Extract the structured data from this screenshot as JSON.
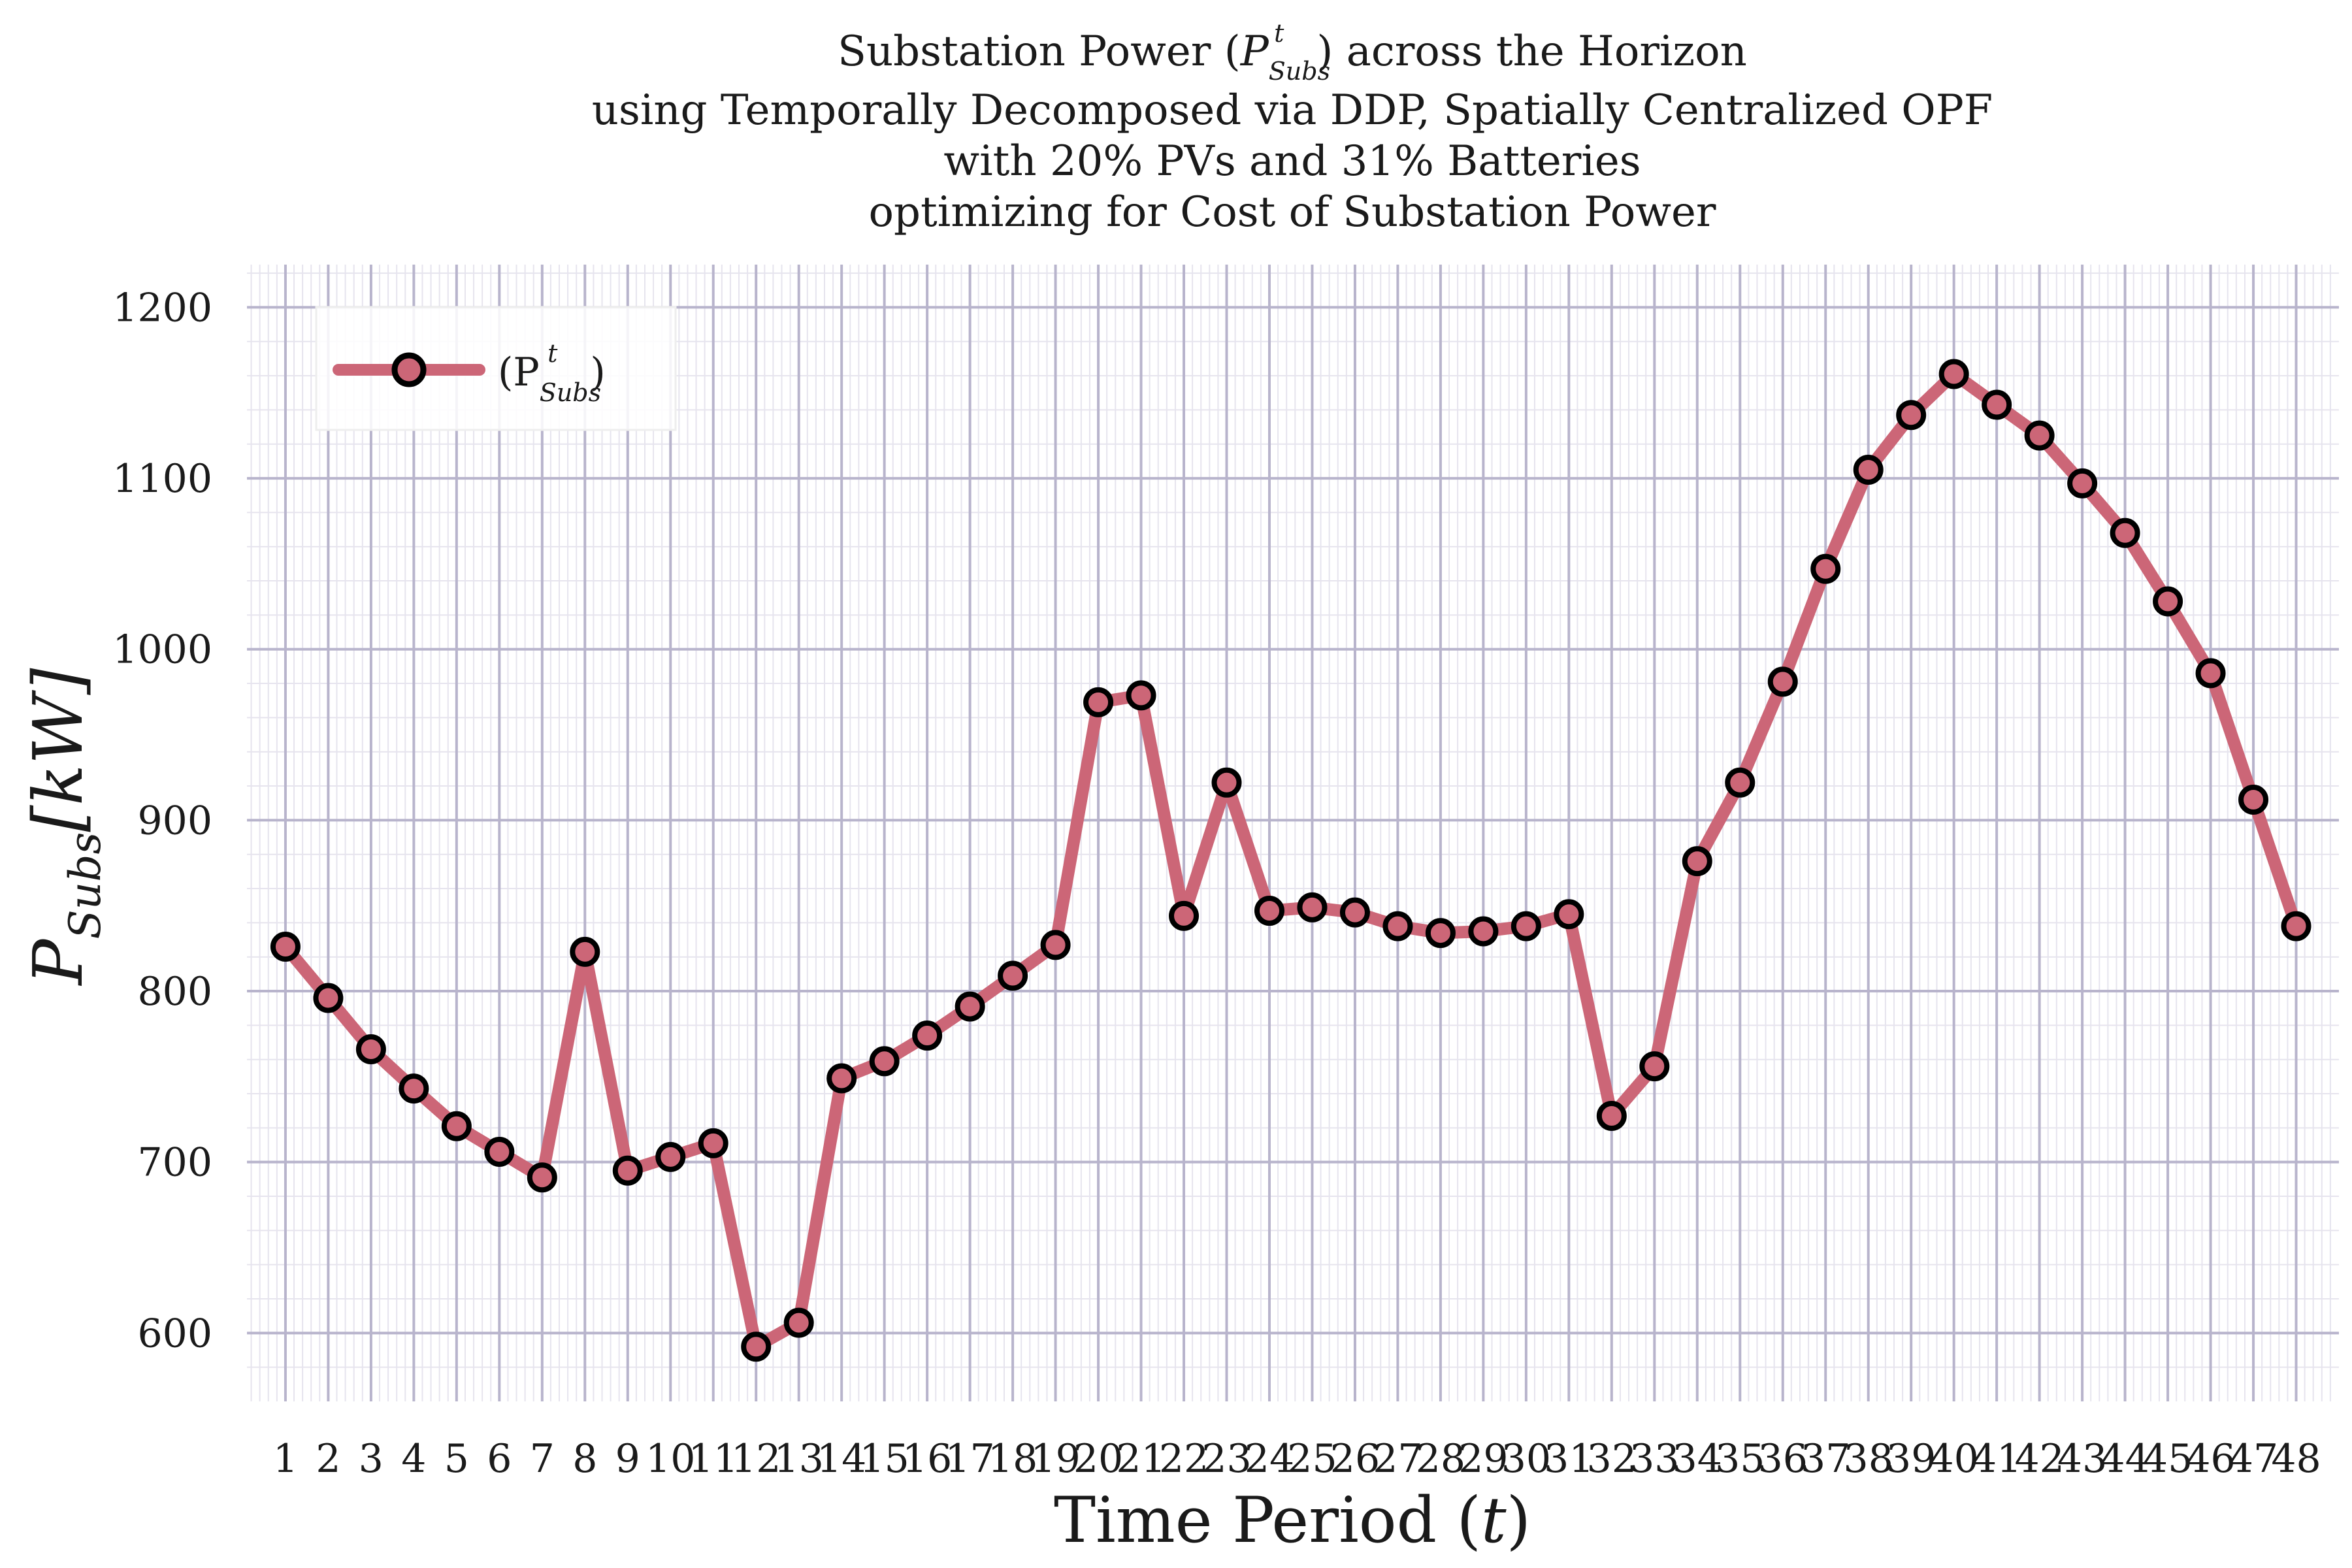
{
  "chart_data": {
    "type": "line",
    "title_lines": [
      "Substation Power (P",
      "using Temporally Decomposed via DDP, Spatially Centralized OPF",
      "with 20% PVs and 31% Batteries",
      "optimizing for Cost of Substation Power"
    ],
    "title_symbol": {
      "base": "P",
      "superscript": "t",
      "subscript": "Subs",
      "prefix": "Substation Power (",
      "suffix": ") across the Horizon"
    },
    "xlabel": {
      "text": "Time Period (",
      "var": "t",
      "close": ")"
    },
    "ylabel": {
      "base": "P",
      "subscript": "Subs",
      "unit": "[kW]"
    },
    "x": [
      1,
      2,
      3,
      4,
      5,
      6,
      7,
      8,
      9,
      10,
      11,
      12,
      13,
      14,
      15,
      16,
      17,
      18,
      19,
      20,
      21,
      22,
      23,
      24,
      25,
      26,
      27,
      28,
      29,
      30,
      31,
      32,
      33,
      34,
      35,
      36,
      37,
      38,
      39,
      40,
      41,
      42,
      43,
      44,
      45,
      46,
      47,
      48
    ],
    "xticks": [
      "1",
      "2",
      "3",
      "4",
      "5",
      "6",
      "7",
      "8",
      "9",
      "10",
      "11",
      "12",
      "13",
      "14",
      "15",
      "16",
      "17",
      "18",
      "19",
      "20",
      "21",
      "22",
      "23",
      "24",
      "25",
      "26",
      "27",
      "28",
      "29",
      "30",
      "31",
      "32",
      "33",
      "34",
      "35",
      "36",
      "37",
      "38",
      "39",
      "40",
      "41",
      "42",
      "43",
      "44",
      "45",
      "46",
      "47",
      "48"
    ],
    "yticks": [
      "600",
      "700",
      "800",
      "900",
      "1000",
      "1100",
      "1200"
    ],
    "ylim": [
      560,
      1225
    ],
    "xlim": [
      0.1,
      49.0
    ],
    "series": [
      {
        "name": "(P",
        "legend_symbol": {
          "base": "P",
          "superscript": "t",
          "subscript": "Subs"
        },
        "color": "#cc6677",
        "marker_edge": "#000000",
        "values": [
          826,
          796,
          766,
          743,
          721,
          706,
          691,
          823,
          695,
          703,
          711,
          592,
          606,
          749,
          759,
          774,
          791,
          809,
          827,
          969,
          973,
          844,
          922,
          847,
          849,
          846,
          838,
          834,
          835,
          838,
          845,
          727,
          756,
          876,
          922,
          981,
          1047,
          1105,
          1137,
          1161,
          1143,
          1125,
          1097,
          1068,
          1028,
          986,
          912,
          838
        ]
      }
    ],
    "grid": true,
    "legend_position": "top-left",
    "colors": {
      "grid_major": "#b8b4cc",
      "grid_minor": "#e6e4ee",
      "line": "#cc6677"
    }
  }
}
